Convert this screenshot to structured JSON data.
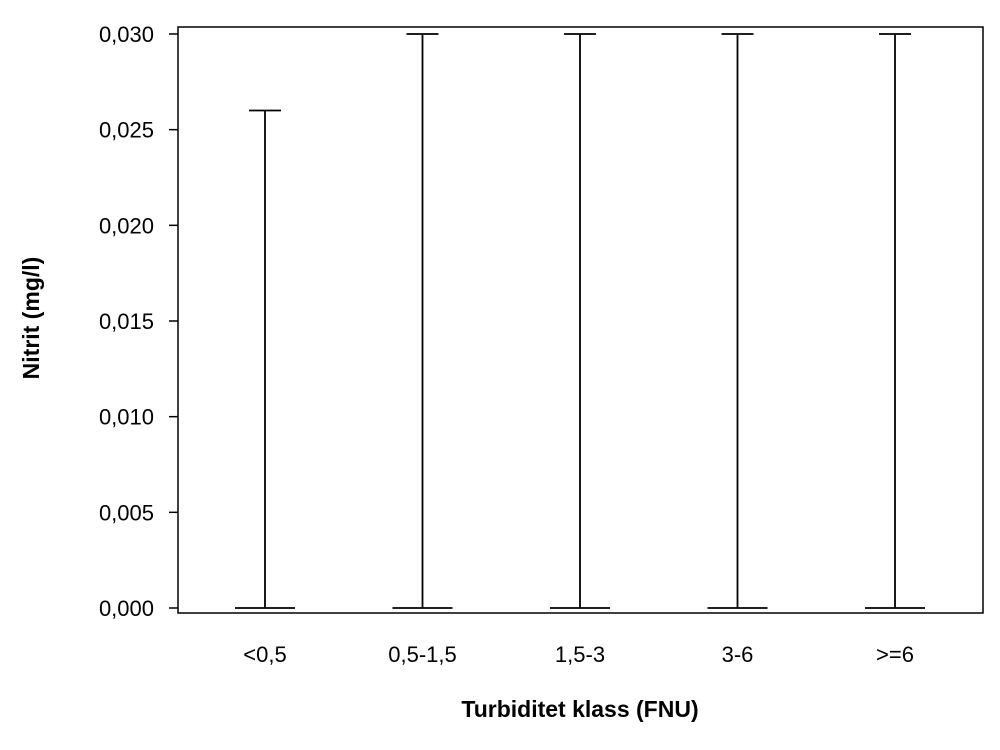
{
  "chart_data": {
    "type": "range",
    "categories": [
      "<0,5",
      "0,5-1,5",
      "1,5-3",
      "3-6",
      ">=6"
    ],
    "series": [
      {
        "min": [
          0.0,
          0.0,
          0.0,
          0.0,
          0.0
        ],
        "max": [
          0.026,
          0.03,
          0.03,
          0.03,
          0.03
        ]
      }
    ],
    "xlabel": "Turbiditet klass (FNU)",
    "ylabel": "Nitrit (mg/l)",
    "ylim": [
      0.0,
      0.03
    ],
    "yticks": [
      "0,000",
      "0,005",
      "0,010",
      "0,015",
      "0,020",
      "0,025",
      "0,030"
    ],
    "grid": false,
    "legend": "none"
  }
}
